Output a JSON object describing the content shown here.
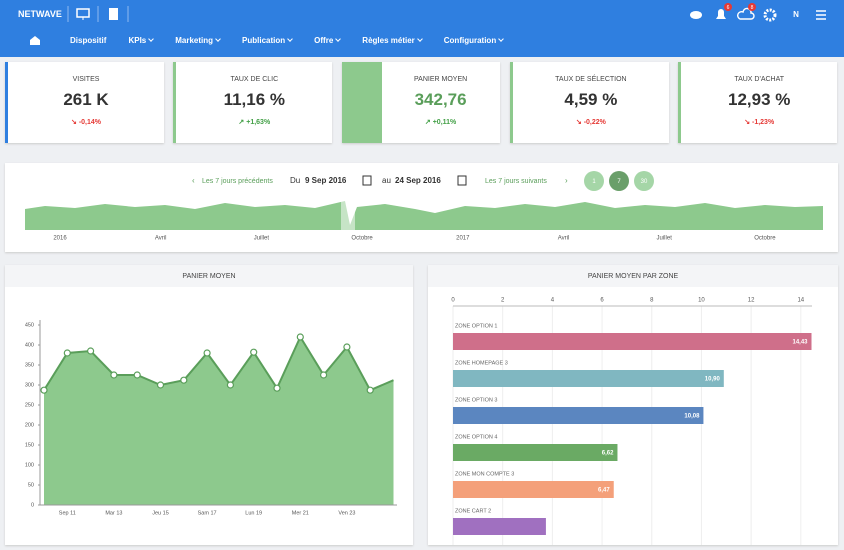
{
  "header": {
    "brand": "NETWAVE",
    "nav": [
      "Dispositif",
      "KPIs",
      "Marketing",
      "Publication",
      "Offre",
      "Règles métier",
      "Configuration"
    ],
    "badges": [
      "6",
      "8"
    ],
    "user": "N"
  },
  "kpis": [
    {
      "label": "VISITES",
      "value": "261 K",
      "change": "-0,14%"
    },
    {
      "label": "TAUX DE CLIC",
      "value": "11,16 %",
      "change": "+1,63%"
    },
    {
      "label": "PANIER MOYEN",
      "value": "342,76",
      "change": "+0,11%"
    },
    {
      "label": "TAUX DE SÉLECTION",
      "value": "4,59 %",
      "change": "-0,22%"
    },
    {
      "label": "TAUX D'ACHAT",
      "value": "12,93 %",
      "change": "-1,23%"
    }
  ],
  "date_range": {
    "prev": "Les 7 jours précédents",
    "from_label": "Du",
    "from": "9 Sep 2016",
    "to_label": "au",
    "to": "24 Sep 2016",
    "next": "Les 7 jours suivants",
    "buttons": [
      "1",
      "7",
      "30"
    ],
    "timeline": [
      "2016",
      "Avril",
      "Juillet",
      "Octobre",
      "2017",
      "Avril",
      "Juillet",
      "Octobre"
    ]
  },
  "chart_data": [
    {
      "type": "line",
      "title": "PANIER MOYEN",
      "categories": [
        null,
        "Sep 11",
        null,
        "Mar 13",
        null,
        "Jeu 15",
        null,
        "Sam 17",
        null,
        "Lun 19",
        null,
        "Mer 21",
        null,
        "Ven 23",
        null,
        null
      ],
      "values": [
        287,
        380,
        385,
        325,
        325,
        300,
        312,
        380,
        300,
        382,
        292,
        420,
        325,
        395,
        287,
        312
      ],
      "color": "#5a9e5a",
      "fill": "#8dc98d",
      "ylim": [
        0,
        450
      ],
      "yticks": [
        0,
        50,
        100,
        150,
        200,
        250,
        300,
        350,
        400,
        450
      ]
    },
    {
      "type": "hbar",
      "title": "PANIER MOYEN PAR ZONE",
      "categories": [
        "ZONE OPTION 1",
        "ZONE HOMEPAGE 3",
        "ZONE OPTION 3",
        "ZONE OPTION 4",
        "ZONE MON COMPTE 3",
        "ZONE CART 2"
      ],
      "values": [
        14.43,
        10.9,
        10.08,
        6.62,
        6.47,
        3.74
      ],
      "value_labels": [
        "14,43",
        "10,90",
        "10,08",
        "6,62",
        "6,47",
        null
      ],
      "colors": [
        "#cf6f8a",
        "#80b7c1",
        "#5b86c0",
        "#6aaa64",
        "#f4a07a",
        "#a070c0"
      ],
      "xlim": [
        0,
        14.45
      ],
      "xticks": [
        0,
        2,
        4,
        6,
        8,
        10,
        12,
        14
      ],
      "grid": true
    }
  ]
}
